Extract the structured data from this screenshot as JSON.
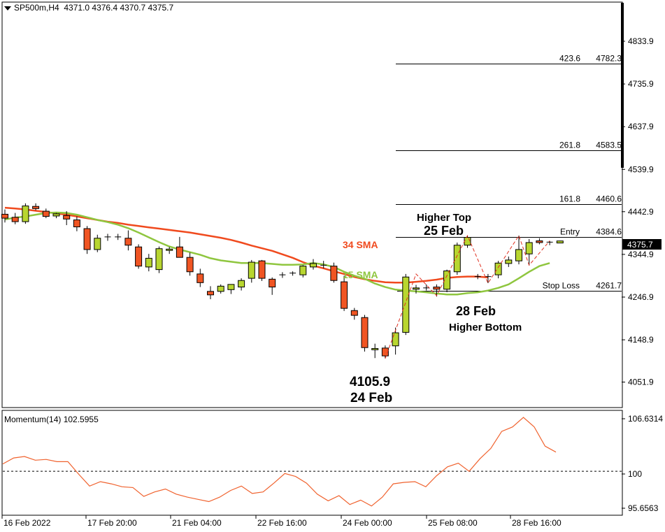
{
  "header": {
    "symbol_label": "SP500m,H4",
    "ohlc": "4371.0 4376.4 4370.7 4375.7"
  },
  "momentum_header": "Momentum(14) 102.5955",
  "colors": {
    "bull": "#b8d630",
    "bear": "#f05523",
    "sma15": "#8fc63f",
    "sma34": "#f04a1e",
    "momentum": "#f0622e",
    "zigzag": "#e03020",
    "price_badge_bg": "#000000"
  },
  "chart_data": [
    {
      "type": "candlestick",
      "title": "",
      "ylim": [
        4010,
        4880
      ],
      "y_ticks": [
        "4833.9",
        "4735.9",
        "4637.9",
        "4539.9",
        "4442.9",
        "4344.9",
        "4246.9",
        "4148.9",
        "4051.9"
      ],
      "x_tick_labels": [
        "16 Feb 2022",
        "17 Feb 20:00",
        "21 Feb 04:00",
        "22 Feb 16:00",
        "24 Feb 00:00",
        "25 Feb 08:00",
        "28 Feb 16:00"
      ],
      "current_price": "4375.7",
      "candles": [
        {
          "o": 4437,
          "h": 4448,
          "l": 4418,
          "c": 4428
        },
        {
          "o": 4430,
          "h": 4440,
          "l": 4414,
          "c": 4420
        },
        {
          "o": 4420,
          "h": 4462,
          "l": 4415,
          "c": 4456
        },
        {
          "o": 4455,
          "h": 4462,
          "l": 4446,
          "c": 4450
        },
        {
          "o": 4444,
          "h": 4450,
          "l": 4428,
          "c": 4432
        },
        {
          "o": 4433,
          "h": 4440,
          "l": 4428,
          "c": 4438
        },
        {
          "o": 4434,
          "h": 4444,
          "l": 4412,
          "c": 4426
        },
        {
          "o": 4424,
          "h": 4432,
          "l": 4398,
          "c": 4408
        },
        {
          "o": 4404,
          "h": 4410,
          "l": 4346,
          "c": 4356
        },
        {
          "o": 4356,
          "h": 4390,
          "l": 4350,
          "c": 4382
        },
        {
          "o": 4383,
          "h": 4392,
          "l": 4376,
          "c": 4385
        },
        {
          "o": 4385,
          "h": 4392,
          "l": 4378,
          "c": 4384
        },
        {
          "o": 4382,
          "h": 4400,
          "l": 4354,
          "c": 4366
        },
        {
          "o": 4362,
          "h": 4368,
          "l": 4312,
          "c": 4318
        },
        {
          "o": 4316,
          "h": 4346,
          "l": 4306,
          "c": 4336
        },
        {
          "o": 4310,
          "h": 4363,
          "l": 4302,
          "c": 4358
        },
        {
          "o": 4354,
          "h": 4362,
          "l": 4346,
          "c": 4357
        },
        {
          "o": 4362,
          "h": 4385,
          "l": 4344,
          "c": 4338
        },
        {
          "o": 4338,
          "h": 4349,
          "l": 4296,
          "c": 4305
        },
        {
          "o": 4300,
          "h": 4312,
          "l": 4270,
          "c": 4280
        },
        {
          "o": 4260,
          "h": 4272,
          "l": 4242,
          "c": 4252
        },
        {
          "o": 4260,
          "h": 4276,
          "l": 4255,
          "c": 4272
        },
        {
          "o": 4264,
          "h": 4276,
          "l": 4254,
          "c": 4276
        },
        {
          "o": 4270,
          "h": 4290,
          "l": 4262,
          "c": 4285
        },
        {
          "o": 4290,
          "h": 4332,
          "l": 4280,
          "c": 4327
        },
        {
          "o": 4330,
          "h": 4332,
          "l": 4284,
          "c": 4290
        },
        {
          "o": 4288,
          "h": 4292,
          "l": 4252,
          "c": 4270
        },
        {
          "o": 4297,
          "h": 4304,
          "l": 4291,
          "c": 4298
        },
        {
          "o": 4302,
          "h": 4306,
          "l": 4296,
          "c": 4300
        },
        {
          "o": 4298,
          "h": 4320,
          "l": 4292,
          "c": 4318
        },
        {
          "o": 4316,
          "h": 4334,
          "l": 4310,
          "c": 4324
        },
        {
          "o": 4320,
          "h": 4330,
          "l": 4313,
          "c": 4318
        },
        {
          "o": 4318,
          "h": 4326,
          "l": 4280,
          "c": 4285
        },
        {
          "o": 4282,
          "h": 4296,
          "l": 4215,
          "c": 4221
        },
        {
          "o": 4216,
          "h": 4222,
          "l": 4195,
          "c": 4205
        },
        {
          "o": 4200,
          "h": 4206,
          "l": 4122,
          "c": 4131
        },
        {
          "o": 4126,
          "h": 4140,
          "l": 4107,
          "c": 4129
        },
        {
          "o": 4130,
          "h": 4136,
          "l": 4106,
          "c": 4112
        },
        {
          "o": 4135,
          "h": 4177,
          "l": 4115,
          "c": 4165
        },
        {
          "o": 4166,
          "h": 4300,
          "l": 4160,
          "c": 4293
        },
        {
          "o": 4265,
          "h": 4275,
          "l": 4255,
          "c": 4268
        },
        {
          "o": 4268,
          "h": 4276,
          "l": 4262,
          "c": 4266
        },
        {
          "o": 4270,
          "h": 4276,
          "l": 4248,
          "c": 4265
        },
        {
          "o": 4265,
          "h": 4310,
          "l": 4258,
          "c": 4307
        },
        {
          "o": 4305,
          "h": 4372,
          "l": 4298,
          "c": 4366
        },
        {
          "o": 4366,
          "h": 4388,
          "l": 4360,
          "c": 4384
        },
        {
          "o": 4294,
          "h": 4300,
          "l": 4288,
          "c": 4294
        },
        {
          "o": 4294,
          "h": 4300,
          "l": 4279,
          "c": 4292
        },
        {
          "o": 4298,
          "h": 4330,
          "l": 4290,
          "c": 4325
        },
        {
          "o": 4324,
          "h": 4340,
          "l": 4316,
          "c": 4332
        },
        {
          "o": 4330,
          "h": 4388,
          "l": 4322,
          "c": 4356
        },
        {
          "o": 4346,
          "h": 4380,
          "l": 4320,
          "c": 4372
        },
        {
          "o": 4376,
          "h": 4382,
          "l": 4368,
          "c": 4372
        },
        {
          "o": 4372,
          "h": 4376,
          "l": 4366,
          "c": 4373
        },
        {
          "o": 4371,
          "h": 4376.4,
          "l": 4370.7,
          "c": 4375.7
        }
      ],
      "sma15": [
        4425,
        4429,
        4432,
        4436,
        4440,
        4441,
        4440,
        4436,
        4430,
        4424,
        4419,
        4413,
        4405,
        4395,
        4384,
        4373,
        4363,
        4356,
        4350,
        4344,
        4336,
        4331,
        4328,
        4325,
        4325,
        4325,
        4323,
        4321,
        4321,
        4322,
        4325,
        4322,
        4316,
        4305,
        4296,
        4289,
        4278,
        4270,
        4264,
        4262,
        4260,
        4258,
        4255,
        4253,
        4253,
        4256,
        4258,
        4262,
        4268,
        4276,
        4290,
        4305,
        4318,
        4325
      ],
      "sma34": [
        4452,
        4450,
        4448,
        4445,
        4442,
        4439,
        4436,
        4432,
        4428,
        4424,
        4420,
        4417,
        4413,
        4410,
        4407,
        4404,
        4401,
        4398,
        4395,
        4391,
        4387,
        4383,
        4378,
        4372,
        4365,
        4359,
        4353,
        4345,
        4337,
        4327,
        4319,
        4313,
        4306,
        4300,
        4293,
        4288,
        4284,
        4281,
        4280,
        4280,
        4282,
        4284,
        4287,
        4291,
        4293,
        4294,
        4294,
        4292
      ],
      "sma34_start": 0,
      "fib_levels": [
        {
          "pct": "423.6",
          "price": "4782.3",
          "y": 4782.3
        },
        {
          "pct": "261.8",
          "price": "4583.5",
          "y": 4583.5
        },
        {
          "pct": "161.8",
          "price": "4460.6",
          "y": 4460.6
        },
        {
          "pct": "Entry",
          "price": "4384.6",
          "y": 4384.6
        },
        {
          "pct": "Stop Loss",
          "price": "4261.7",
          "y": 4261.7
        }
      ],
      "zigzag": [
        {
          "i": 37,
          "y": 4106
        },
        {
          "i": 40,
          "y": 4300
        },
        {
          "i": 42,
          "y": 4250
        },
        {
          "i": 45,
          "y": 4388
        },
        {
          "i": 47,
          "y": 4279
        },
        {
          "i": 50,
          "y": 4388
        },
        {
          "i": 51,
          "y": 4320
        },
        {
          "i": 53,
          "y": 4376
        }
      ],
      "annotations": {
        "sma34_label": "34 SMA",
        "sma15_label": "15 SMA",
        "higher_top_1": "Higher Top",
        "higher_top_2": "25 Feb",
        "higher_bottom_1": "28 Feb",
        "higher_bottom_2": "Higher Bottom",
        "low_1": "4105.9",
        "low_2": "24 Feb"
      }
    },
    {
      "type": "line",
      "title": "Momentum(14) 102.5955",
      "ylim": [
        95.0,
        107.5
      ],
      "y_ticks": [
        "106.6314",
        "100",
        "95.6563"
      ],
      "reference_line": 100,
      "series": [
        {
          "values": [
            101.0,
            101.8,
            102.0,
            101.5,
            101.6,
            101.3,
            101.3,
            99.6,
            98.0,
            98.6,
            98.3,
            97.9,
            97.8,
            96.6,
            97.2,
            97.6,
            96.9,
            96.5,
            96.2,
            95.9,
            96.5,
            97.4,
            98.0,
            97.0,
            97.2,
            98.4,
            99.7,
            99.3,
            98.4,
            96.9,
            96.0,
            96.7,
            95.5,
            96.1,
            95.3,
            96.5,
            98.3,
            98.5,
            98.6,
            97.9,
            99.4,
            100.6,
            101.1,
            100.0,
            101.7,
            103.1,
            105.4,
            106.0,
            107.3,
            106.0,
            103.4,
            102.6
          ]
        }
      ]
    }
  ]
}
